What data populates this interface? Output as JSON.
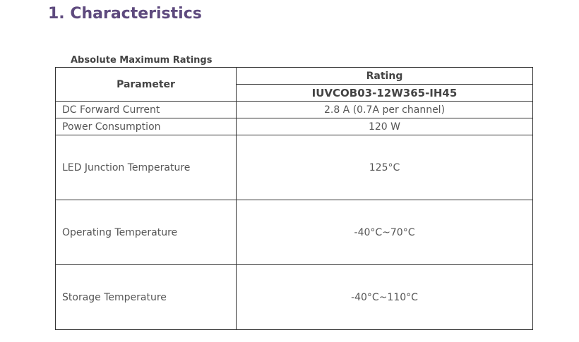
{
  "header": {
    "title": "1. Characteristics"
  },
  "table": {
    "caption": "Absolute Maximum Ratings",
    "header": {
      "parameter": "Parameter",
      "rating": "Rating",
      "model": "IUVCOB03-12W365-IH45"
    },
    "rows": [
      [
        "DC Forward Current",
        "2.8 A (0.7A per channel)"
      ],
      [
        "Power Consumption",
        "120 W"
      ],
      [
        "LED Junction Temperature",
        "125°C"
      ],
      [
        "Operating Temperature",
        "-40°C~70°C"
      ],
      [
        "Storage Temperature",
        "-40°C~110°C"
      ]
    ]
  }
}
